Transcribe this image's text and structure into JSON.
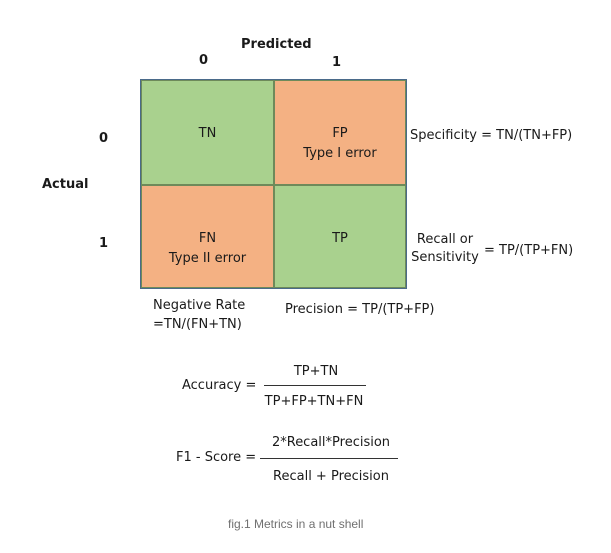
{
  "header": {
    "predicted": "Predicted",
    "actual": "Actual",
    "col0": "0",
    "col1": "1",
    "row0": "0",
    "row1": "1"
  },
  "cells": {
    "tn": {
      "label": "TN",
      "sub": ""
    },
    "fp": {
      "label": "FP",
      "sub": "Type I error"
    },
    "fn": {
      "label": "FN",
      "sub": "Type II error"
    },
    "tp": {
      "label": "TP",
      "sub": ""
    }
  },
  "right_labels": {
    "specificity": "Specificity = TN/(TN+FP)",
    "recall_line1": "Recall or",
    "recall_line2": "Sensitivity",
    "recall_formula": "= TP/(TP+FN)"
  },
  "bottom_labels": {
    "neg_rate_line1": "Negative Rate",
    "neg_rate_line2": "=TN/(FN+TN)",
    "precision": "Precision = TP/(TP+FP)"
  },
  "formulas": {
    "accuracy_label": "Accuracy =",
    "accuracy_num": "TP+TN",
    "accuracy_den": "TP+FP+TN+FN",
    "f1_label": "F1 - Score =",
    "f1_num": "2*Recall*Precision",
    "f1_den": "Recall + Precision"
  },
  "caption": "fig.1 Metrics in a nut shell",
  "colors": {
    "correct": "#a9d18e",
    "error": "#f4b183"
  }
}
